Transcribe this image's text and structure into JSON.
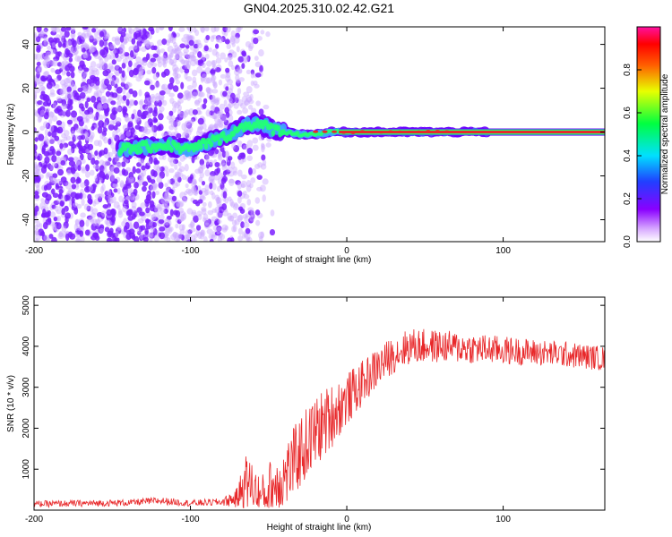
{
  "chart_data": [
    {
      "type": "heatmap",
      "title": "GN04.2025.310.02.42.G21",
      "xlabel": "Height of straight line (km)",
      "ylabel": "Frequency (Hz)",
      "xlim": [
        -200,
        165
      ],
      "ylim": [
        -50,
        48
      ],
      "x_ticks": [
        -200,
        -100,
        0,
        100
      ],
      "x_tick_labels": [
        "-200",
        "-100",
        "0",
        "100"
      ],
      "y_ticks": [
        40,
        20,
        0,
        -20,
        -40
      ],
      "y_tick_labels": [
        "40",
        "20",
        "0",
        "-20",
        "-40"
      ],
      "colorbar": {
        "label": "Normalized spectral amplitude",
        "range": [
          0,
          1
        ],
        "ticks": [
          0.0,
          0.2,
          0.4,
          0.6,
          0.8
        ],
        "tick_labels": [
          "0.0",
          "0.2",
          "0.4",
          "0.6",
          "0.8"
        ]
      },
      "ridge": {
        "x": [
          -145,
          -130,
          -115,
          -100,
          -90,
          -80,
          -72,
          -65,
          -58,
          -50,
          -40,
          -30,
          -20,
          -10,
          0,
          50,
          100,
          165
        ],
        "y": [
          -8,
          -7,
          -6,
          -8,
          -5,
          -3,
          0,
          3,
          4,
          2,
          0,
          -1,
          -1,
          0,
          0,
          0,
          0,
          0
        ]
      },
      "noise_region_km": [
        -200,
        -60
      ]
    },
    {
      "type": "line",
      "xlabel": "Height of straight line (km)",
      "ylabel": "SNR (10 * v/v)",
      "xlim": [
        -200,
        165
      ],
      "ylim": [
        0,
        5200
      ],
      "x_ticks": [
        -200,
        -100,
        0,
        100
      ],
      "x_tick_labels": [
        "-200",
        "-100",
        "0",
        "100"
      ],
      "y_ticks": [
        1000,
        2000,
        3000,
        4000,
        5000
      ],
      "y_tick_labels": [
        "1000",
        "2000",
        "3000",
        "4000",
        "5000"
      ],
      "series": [
        {
          "name": "SNR",
          "color": "#e8282a",
          "envelope_x": [
            -200,
            -140,
            -120,
            -100,
            -80,
            -70,
            -65,
            -60,
            -55,
            -50,
            -40,
            -30,
            -20,
            -10,
            0,
            10,
            20,
            30,
            40,
            60,
            80,
            100,
            120,
            140,
            165
          ],
          "envelope_y": [
            150,
            180,
            230,
            170,
            200,
            300,
            700,
            600,
            300,
            500,
            800,
            1400,
            1900,
            2300,
            2700,
            3100,
            3500,
            3800,
            4000,
            4000,
            3950,
            3900,
            3850,
            3800,
            3700
          ],
          "noise_amplitude": [
            80,
            80,
            90,
            80,
            90,
            250,
            700,
            600,
            500,
            700,
            800,
            900,
            900,
            800,
            650,
            550,
            500,
            450,
            450,
            400,
            380,
            350,
            330,
            320,
            300
          ]
        }
      ]
    }
  ],
  "colors": {
    "ridge_core": "#e8282a",
    "ridge_halo": "#3ea8ff",
    "ridge_mid": "#22ff77",
    "ridge_outer": "#6a00ff",
    "noise": "#7b1fff"
  }
}
